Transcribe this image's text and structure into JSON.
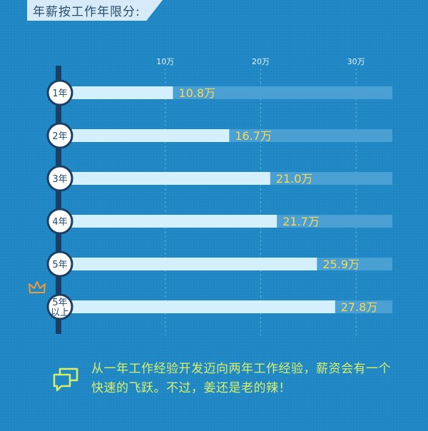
{
  "header": {
    "title": "年薪按工作年限分:"
  },
  "chart_data": {
    "type": "bar",
    "orientation": "horizontal",
    "categories": [
      [
        "1年"
      ],
      [
        "2年"
      ],
      [
        "3年"
      ],
      [
        "4年"
      ],
      [
        "5年"
      ],
      [
        "5年",
        "以上"
      ]
    ],
    "values": [
      10.8,
      16.7,
      21.0,
      21.7,
      25.9,
      27.8
    ],
    "value_labels": [
      "10.8万",
      "16.7万",
      "21.0万",
      "21.7万",
      "25.9万",
      "27.8万"
    ],
    "xticks": [
      {
        "value": 10,
        "label": "10万"
      },
      {
        "value": 20,
        "label": "20万"
      },
      {
        "value": 30,
        "label": "30万"
      }
    ],
    "xlim": [
      0,
      33.8
    ],
    "grid": true,
    "highlight_icon": "crown-icon",
    "colors": {
      "background": "#1f87c4",
      "bar": "#d4f0ff",
      "track": "#4aa0d2",
      "value_text": "#ffd750",
      "axis": "#1a3f66"
    }
  },
  "note": {
    "icon": "chat-bubbles-icon",
    "text": "从一年工作经验开发迈向两年工作经验，薪资会有一个快速的飞跃。不过，姜还是老的辣！"
  }
}
